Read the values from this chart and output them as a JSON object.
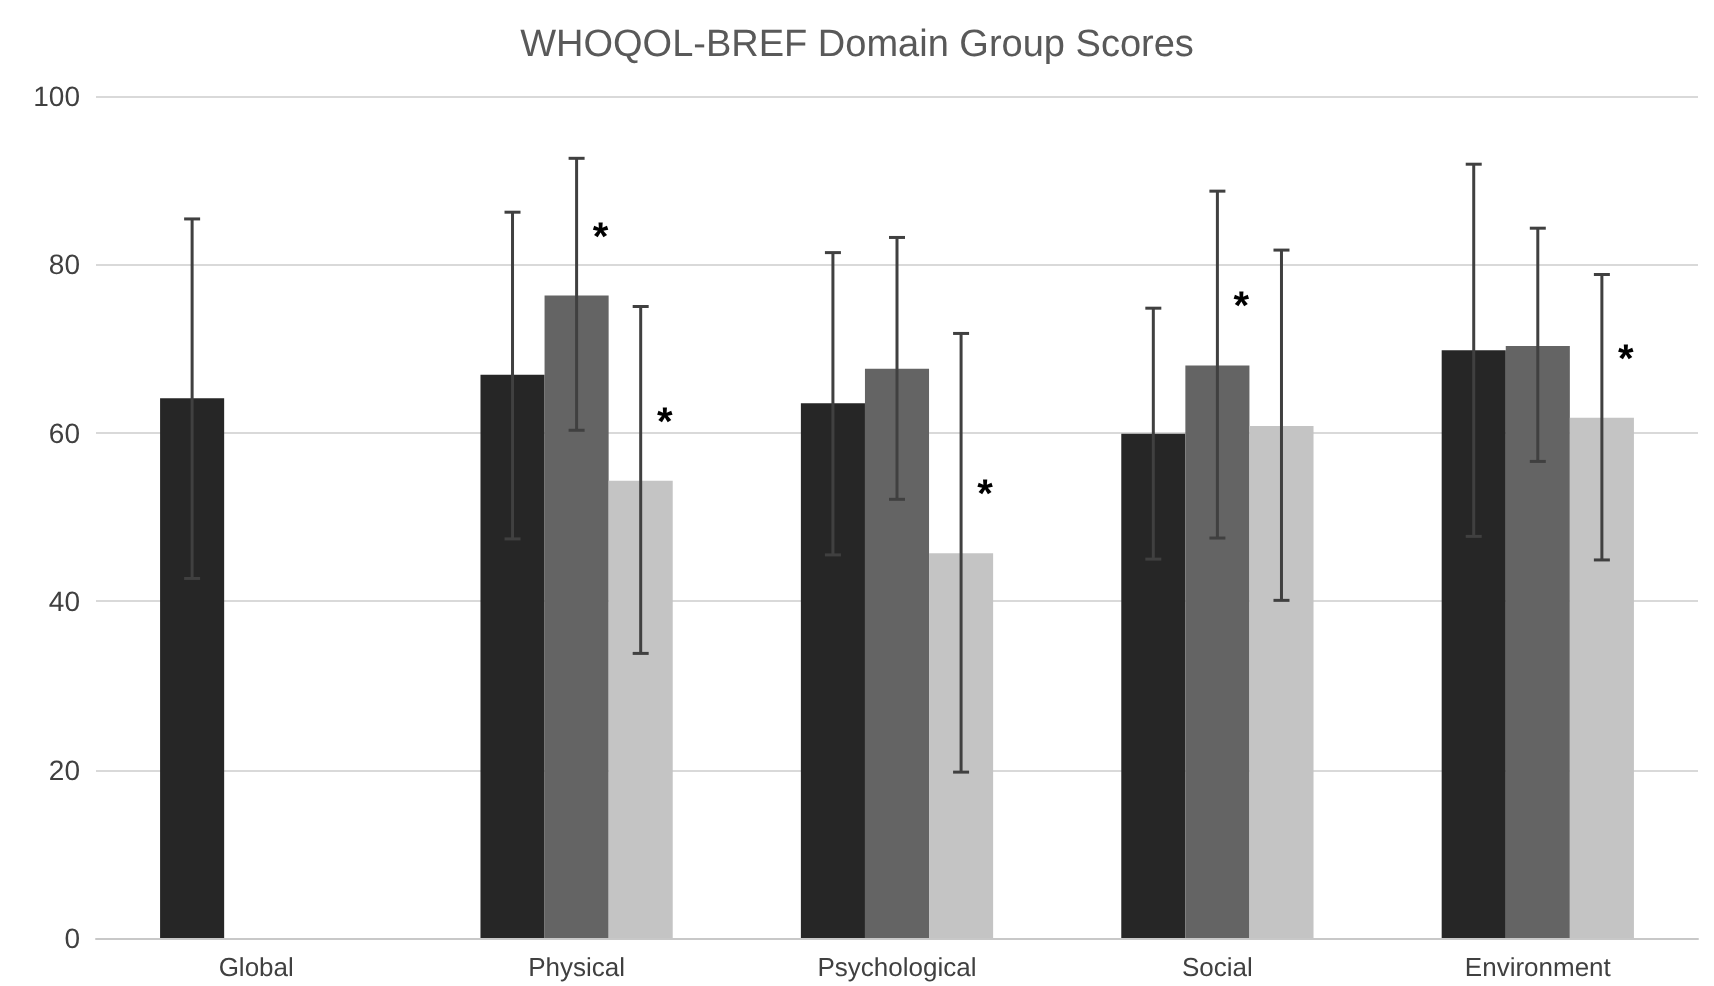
{
  "chart_data": {
    "type": "bar",
    "title": "WHOQOL-BREF Domain Group Scores",
    "categories": [
      "Global",
      "Physical",
      "Psychological",
      "Social",
      "Environment"
    ],
    "series": [
      {
        "color": "#262626",
        "values": [
          64.1,
          66.9,
          63.5,
          59.9,
          69.8
        ],
        "errors": [
          [
            42.7,
            85.4
          ],
          [
            47.4,
            86.2
          ],
          [
            45.5,
            81.4
          ],
          [
            45.0,
            74.8
          ],
          [
            47.7,
            91.9
          ]
        ]
      },
      {
        "color": "#646464",
        "values": [
          null,
          76.3,
          67.6,
          68.0,
          70.3
        ],
        "errors": [
          null,
          [
            60.3,
            92.6
          ],
          [
            52.1,
            83.2
          ],
          [
            47.5,
            88.7
          ],
          [
            56.6,
            84.3
          ]
        ],
        "value_labels": [
          null,
          "*",
          null,
          "*",
          null
        ]
      },
      {
        "color": "#c4c4c4",
        "values": [
          null,
          54.3,
          45.7,
          60.8,
          61.8
        ],
        "errors": [
          null,
          [
            33.8,
            75.0
          ],
          [
            19.7,
            71.8
          ],
          [
            40.1,
            81.7
          ],
          [
            44.9,
            78.8
          ]
        ],
        "value_labels": [
          null,
          "*",
          "*",
          null,
          "*"
        ]
      }
    ],
    "ylim": [
      0,
      100
    ],
    "yticks": [
      0,
      20,
      40,
      60,
      80,
      100
    ],
    "grid": "y"
  }
}
